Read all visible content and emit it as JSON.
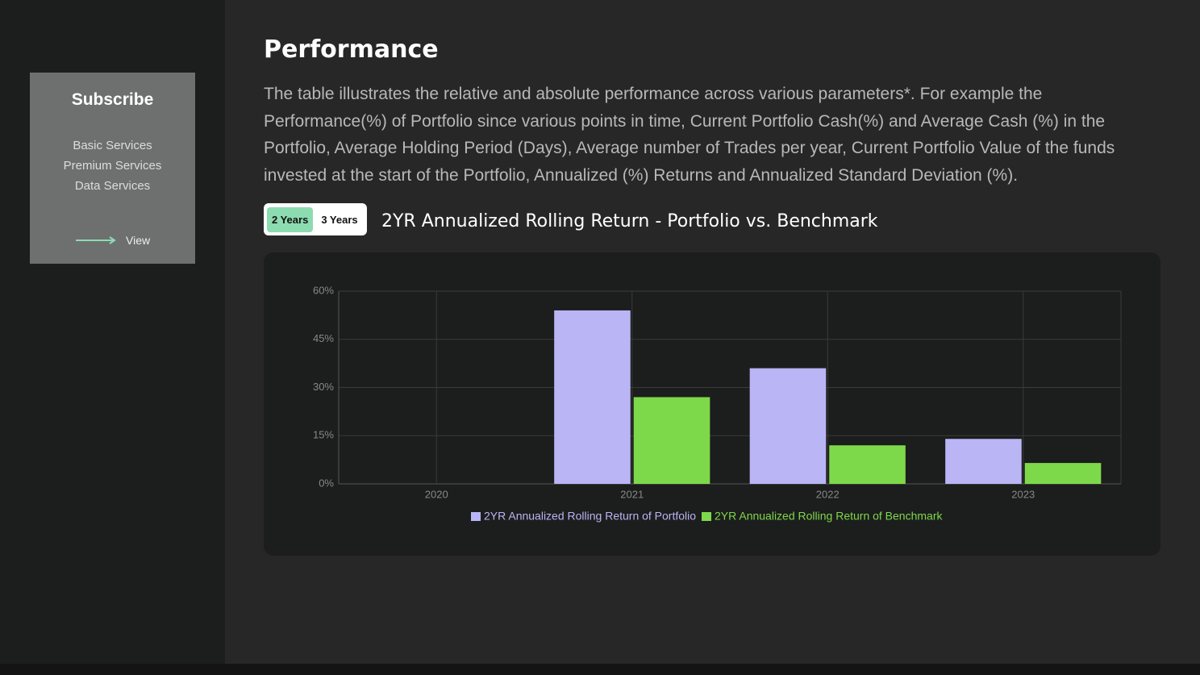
{
  "sidebar": {
    "title": "Subscribe",
    "links": [
      "Basic Services",
      "Premium Services",
      "Data Services"
    ],
    "view": "View"
  },
  "header": {
    "title": "Performance",
    "description": "The table illustrates the relative and absolute performance across various parameters*. For example the Performance(%) of Portfolio since various points in time, Current Portfolio Cash(%) and Average Cash (%) in the Portfolio, Average Holding Period (Days), Average number of Trades per year, Current Portfolio Value of the funds invested at the start of the Portfolio, Annualized (%) Returns and Annualized Standard Deviation (%)."
  },
  "tabs": [
    "2 Years",
    "3 Years"
  ],
  "chart_data": {
    "type": "bar",
    "title": "2YR Annualized Rolling Return - Portfolio vs. Benchmark",
    "categories": [
      "2020",
      "2021",
      "2022",
      "2023"
    ],
    "series": [
      {
        "name": "2YR Annualized Rolling Return of Portfolio",
        "color": "#bab5f5",
        "values": [
          null,
          54,
          36,
          14
        ]
      },
      {
        "name": "2YR Annualized Rolling Return of Benchmark",
        "color": "#7ed94a",
        "values": [
          null,
          27,
          12,
          6.5
        ]
      }
    ],
    "ylim": [
      0,
      60
    ],
    "yticks": [
      {
        "value": 0,
        "label": "0%"
      },
      {
        "value": 15,
        "label": "15%"
      },
      {
        "value": 30,
        "label": "30%"
      },
      {
        "value": 45,
        "label": "45%"
      },
      {
        "value": 60,
        "label": "60%"
      }
    ],
    "grid": true
  }
}
